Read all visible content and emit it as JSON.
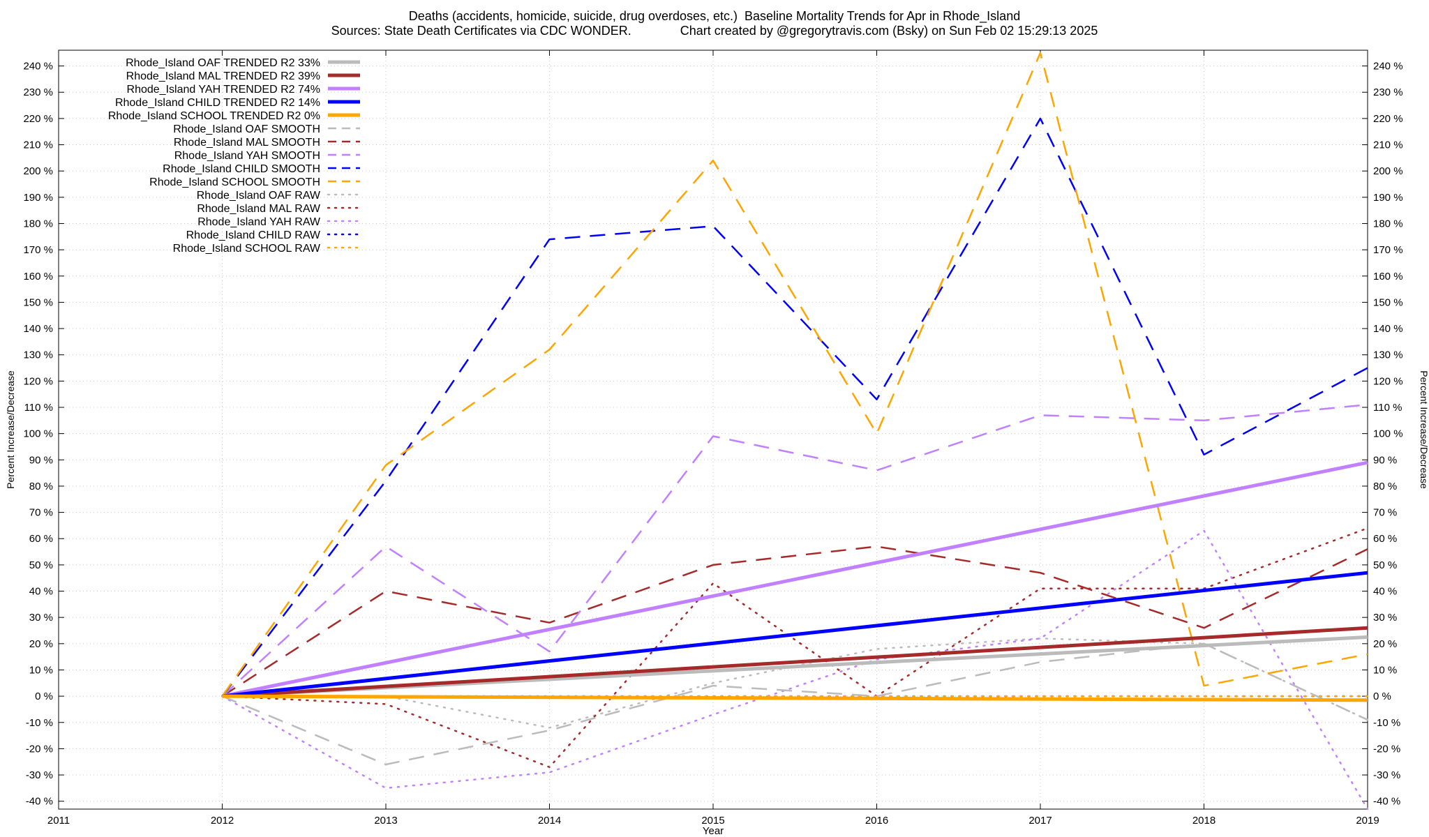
{
  "chart_data": {
    "type": "line",
    "title_line1": "Deaths (accidents, homicide, suicide, drug overdoses, etc.)  Baseline Mortality Trends for Apr in Rhode_Island",
    "title_line2": "Sources: State Death Certificates via CDC WONDER.              Chart created by @gregorytravis.com (Bsky) on Sun Feb 02 15:29:13 2025",
    "xlabel": "Year",
    "ylabel": "Percent Increase/Decrease",
    "xlim": [
      2011,
      2019
    ],
    "ylim": [
      -43,
      246
    ],
    "x_ticks": [
      2011,
      2012,
      2013,
      2014,
      2015,
      2016,
      2017,
      2018,
      2019
    ],
    "y_ticks": [
      -40,
      -30,
      -20,
      -10,
      0,
      10,
      20,
      30,
      40,
      50,
      60,
      70,
      80,
      90,
      100,
      110,
      120,
      130,
      140,
      150,
      160,
      170,
      180,
      190,
      200,
      210,
      220,
      230,
      240
    ],
    "y_tick_suffix": " %",
    "grid": true,
    "legend_position": "top-left",
    "colors": {
      "OAF": "#bbbbbb",
      "MAL": "#a52a2a",
      "YAH": "#c080ff",
      "CHILD": "#0000ff",
      "SCHOOL": "#ffa500"
    },
    "series": [
      {
        "name": "Rhode_Island OAF TRENDED R2  33%",
        "group": "OAF",
        "style": "trended",
        "x": [
          2012,
          2019
        ],
        "y": [
          0,
          22.5
        ]
      },
      {
        "name": "Rhode_Island MAL TRENDED R2  39%",
        "group": "MAL",
        "style": "trended",
        "x": [
          2012,
          2019
        ],
        "y": [
          0,
          26
        ]
      },
      {
        "name": "Rhode_Island YAH TRENDED R2  74%",
        "group": "YAH",
        "style": "trended",
        "x": [
          2012,
          2019
        ],
        "y": [
          0,
          89
        ]
      },
      {
        "name": "Rhode_Island CHILD TRENDED R2  14%",
        "group": "CHILD",
        "style": "trended",
        "x": [
          2012,
          2019
        ],
        "y": [
          0,
          47
        ]
      },
      {
        "name": "Rhode_Island SCHOOL TRENDED R2   0%",
        "group": "SCHOOL",
        "style": "trended",
        "x": [
          2012,
          2019
        ],
        "y": [
          0,
          -1.5
        ]
      },
      {
        "name": "Rhode_Island OAF SMOOTH",
        "group": "OAF",
        "style": "smooth",
        "x": [
          2012,
          2013,
          2014,
          2015,
          2016,
          2017,
          2018,
          2019
        ],
        "y": [
          0,
          -26,
          -13,
          4,
          0,
          13,
          20,
          -9
        ]
      },
      {
        "name": "Rhode_Island MAL SMOOTH",
        "group": "MAL",
        "style": "smooth",
        "x": [
          2012,
          2013,
          2014,
          2015,
          2016,
          2017,
          2018,
          2019
        ],
        "y": [
          0,
          40,
          28,
          50,
          57,
          47,
          26,
          56
        ]
      },
      {
        "name": "Rhode_Island YAH SMOOTH",
        "group": "YAH",
        "style": "smooth",
        "x": [
          2012,
          2013,
          2014,
          2015,
          2016,
          2017,
          2018,
          2019
        ],
        "y": [
          0,
          57,
          17,
          99,
          86,
          107,
          105,
          111
        ]
      },
      {
        "name": "Rhode_Island CHILD SMOOTH",
        "group": "CHILD",
        "style": "smooth",
        "x": [
          2012,
          2013,
          2014,
          2015,
          2016,
          2017,
          2018,
          2019
        ],
        "y": [
          0,
          82,
          174,
          179,
          113,
          220,
          92,
          125
        ]
      },
      {
        "name": "Rhode_Island SCHOOL SMOOTH",
        "group": "SCHOOL",
        "style": "smooth",
        "x": [
          2012,
          2013,
          2014,
          2015,
          2016,
          2017,
          2018,
          2019
        ],
        "y": [
          0,
          88,
          132,
          204,
          100,
          245,
          4,
          16
        ]
      },
      {
        "name": "Rhode_Island OAF RAW",
        "group": "OAF",
        "style": "raw",
        "x": [
          2012,
          2013,
          2014,
          2015,
          2016,
          2017,
          2018,
          2019
        ],
        "y": [
          0,
          0,
          -12,
          5,
          18,
          22,
          20,
          -9
        ]
      },
      {
        "name": "Rhode_Island MAL RAW",
        "group": "MAL",
        "style": "raw",
        "x": [
          2012,
          2013,
          2014,
          2015,
          2016,
          2017,
          2018,
          2019
        ],
        "y": [
          0,
          -3,
          -27,
          43,
          0,
          41,
          41,
          64
        ]
      },
      {
        "name": "Rhode_Island YAH RAW",
        "group": "YAH",
        "style": "raw",
        "x": [
          2012,
          2013,
          2014,
          2015,
          2016,
          2017,
          2018,
          2019
        ],
        "y": [
          0,
          -35,
          -29,
          -7,
          14,
          22,
          63,
          -43
        ]
      },
      {
        "name": "Rhode_Island CHILD RAW",
        "group": "CHILD",
        "style": "raw",
        "x": [
          2012,
          2013,
          2014,
          2015,
          2016,
          2017,
          2018,
          2019
        ],
        "y": [
          0,
          0,
          0,
          0,
          0,
          0,
          0,
          0
        ]
      },
      {
        "name": "Rhode_Island SCHOOL RAW",
        "group": "SCHOOL",
        "style": "raw",
        "x": [
          2012,
          2013,
          2014,
          2015,
          2016,
          2017,
          2018,
          2019
        ],
        "y": [
          0,
          0,
          0,
          0,
          0,
          0,
          0,
          0
        ]
      }
    ]
  }
}
